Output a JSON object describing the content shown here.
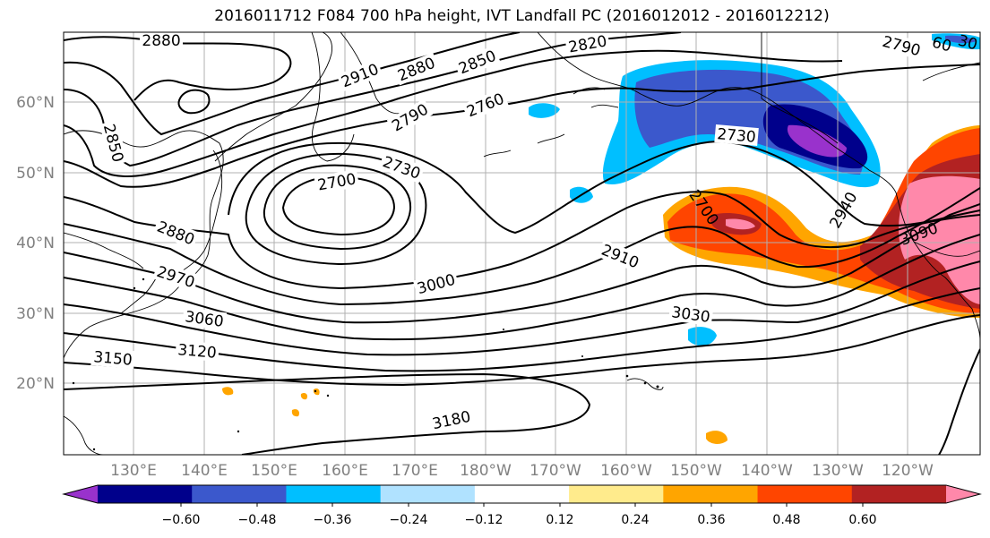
{
  "title": "2016011712 F084 700 hPa height, IVT Landfall PC (2016012012 - 2016012212)",
  "map": {
    "lat_labels": [
      "60°N",
      "50°N",
      "40°N",
      "30°N",
      "20°N"
    ],
    "lon_labels": [
      "130°E",
      "140°E",
      "150°E",
      "160°E",
      "170°E",
      "180°W",
      "170°W",
      "160°W",
      "150°W",
      "140°W",
      "130°W",
      "120°W"
    ],
    "grid": true,
    "tick_label_color": "#808080"
  },
  "contours": {
    "units": "m",
    "variable": "700 hPa height",
    "labels": [
      "2880",
      "2910",
      "2880",
      "2850",
      "2820",
      "2790",
      "60",
      "30",
      "2850",
      "2790",
      "2760",
      "2730",
      "2730",
      "2700",
      "2700",
      "2940",
      "3090",
      "2880",
      "2970",
      "2910",
      "3000",
      "3060",
      "3030",
      "3120",
      "3150",
      "3180"
    ]
  },
  "colorbar": {
    "ticks": [
      "−0.60",
      "−0.48",
      "−0.36",
      "−0.24",
      "−0.12",
      "0.12",
      "0.24",
      "0.36",
      "0.48",
      "0.60"
    ],
    "colors": [
      "#9932cc",
      "#00008b",
      "#3b58cc",
      "#00bfff",
      "#b0e2ff",
      "#ffffff",
      "#ffeb8c",
      "#ffa500",
      "#ff4500",
      "#b22222",
      "#ff88aa"
    ],
    "extend": "both"
  }
}
